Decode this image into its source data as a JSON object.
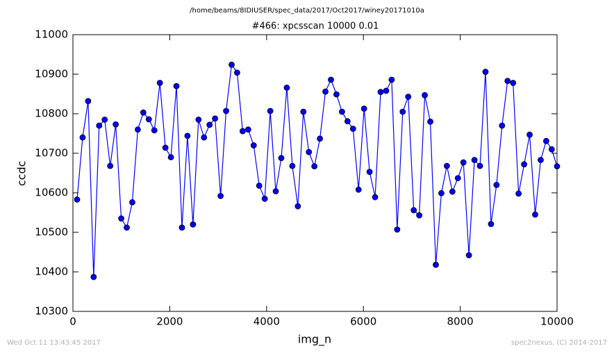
{
  "chart_data": {
    "type": "line",
    "suptitle": "/home/beams/8IDIUSER/spec_data/2017/Oct2017/winey20171010a",
    "title": "#466: xpcsscan 10000 0.01",
    "x_label": "img_n",
    "y_label": "ccdc",
    "footer_left": "Wed Oct 11 13:43:45 2017",
    "footer_right": "spec2nexus, (C) 2014-2017",
    "xlim": [
      0,
      10000
    ],
    "xticks": [
      0,
      2000,
      4000,
      6000,
      8000,
      10000
    ],
    "ylim": [
      10300,
      11000
    ],
    "yticks": [
      10300,
      10400,
      10500,
      10600,
      10700,
      10800,
      10900,
      11000
    ],
    "color": "#0000ff",
    "x": [
      86,
      200,
      314,
      428,
      542,
      656,
      770,
      884,
      998,
      1112,
      1226,
      1340,
      1454,
      1568,
      1682,
      1796,
      1910,
      2024,
      2138,
      2252,
      2366,
      2480,
      2594,
      2708,
      2822,
      2936,
      3050,
      3164,
      3278,
      3392,
      3506,
      3620,
      3734,
      3848,
      3962,
      4076,
      4190,
      4304,
      4418,
      4532,
      4646,
      4760,
      4874,
      4988,
      5102,
      5216,
      5330,
      5444,
      5558,
      5672,
      5786,
      5900,
      6014,
      6128,
      6242,
      6356,
      6470,
      6584,
      6698,
      6812,
      6926,
      7040,
      7154,
      7268,
      7382,
      7496,
      7610,
      7724,
      7838,
      7952,
      8066,
      8180,
      8294,
      8408,
      8522,
      8636,
      8750,
      8864,
      8978,
      9092,
      9206,
      9320,
      9434,
      9548,
      9662,
      9776,
      9890,
      10000
    ],
    "values": [
      10583,
      10740,
      10832,
      10387,
      10770,
      10785,
      10668,
      10773,
      10535,
      10512,
      10576,
      10760,
      10803,
      10786,
      10758,
      10878,
      10714,
      10690,
      10870,
      10512,
      10744,
      10520,
      10785,
      10740,
      10772,
      10788,
      10592,
      10807,
      10924,
      10904,
      10756,
      10760,
      10720,
      10618,
      10585,
      10807,
      10604,
      10688,
      10866,
      10668,
      10566,
      10805,
      10703,
      10667,
      10737,
      10856,
      10886,
      10849,
      10805,
      10781,
      10762,
      10608,
      10813,
      10653,
      10589,
      10855,
      10858,
      10886,
      10507,
      10805,
      10843,
      10556,
      10543,
      10847,
      10780,
      10418,
      10599,
      10668,
      10603,
      10637,
      10677,
      10442,
      10683,
      10668,
      10906,
      10521,
      10620,
      10770,
      10883,
      10878,
      10598,
      10672,
      10747,
      10545,
      10683,
      10731,
      10710,
      10667
    ]
  }
}
